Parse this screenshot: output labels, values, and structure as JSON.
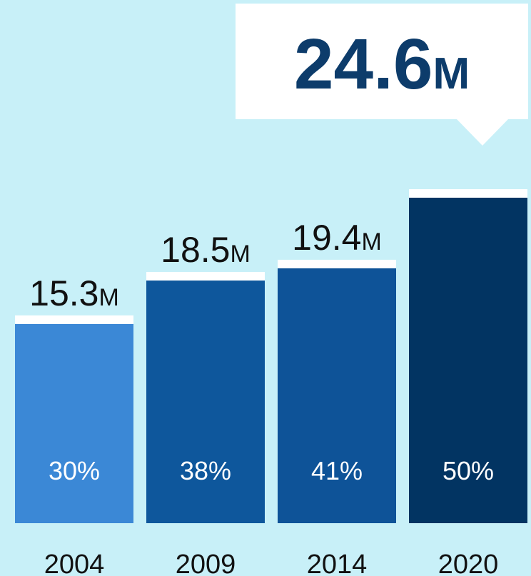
{
  "chart_data": {
    "type": "bar",
    "categories": [
      "2004",
      "2009",
      "2014",
      "2020"
    ],
    "values": [
      15.3,
      18.5,
      19.4,
      24.6
    ],
    "value_labels": [
      "15.3M",
      "18.5M",
      "19.4M",
      "24.6M"
    ],
    "shares": [
      "30%",
      "38%",
      "41%",
      "50%"
    ],
    "colors": [
      "#3b88d6",
      "#0e579c",
      "#0e5398",
      "#023462"
    ]
  }
}
